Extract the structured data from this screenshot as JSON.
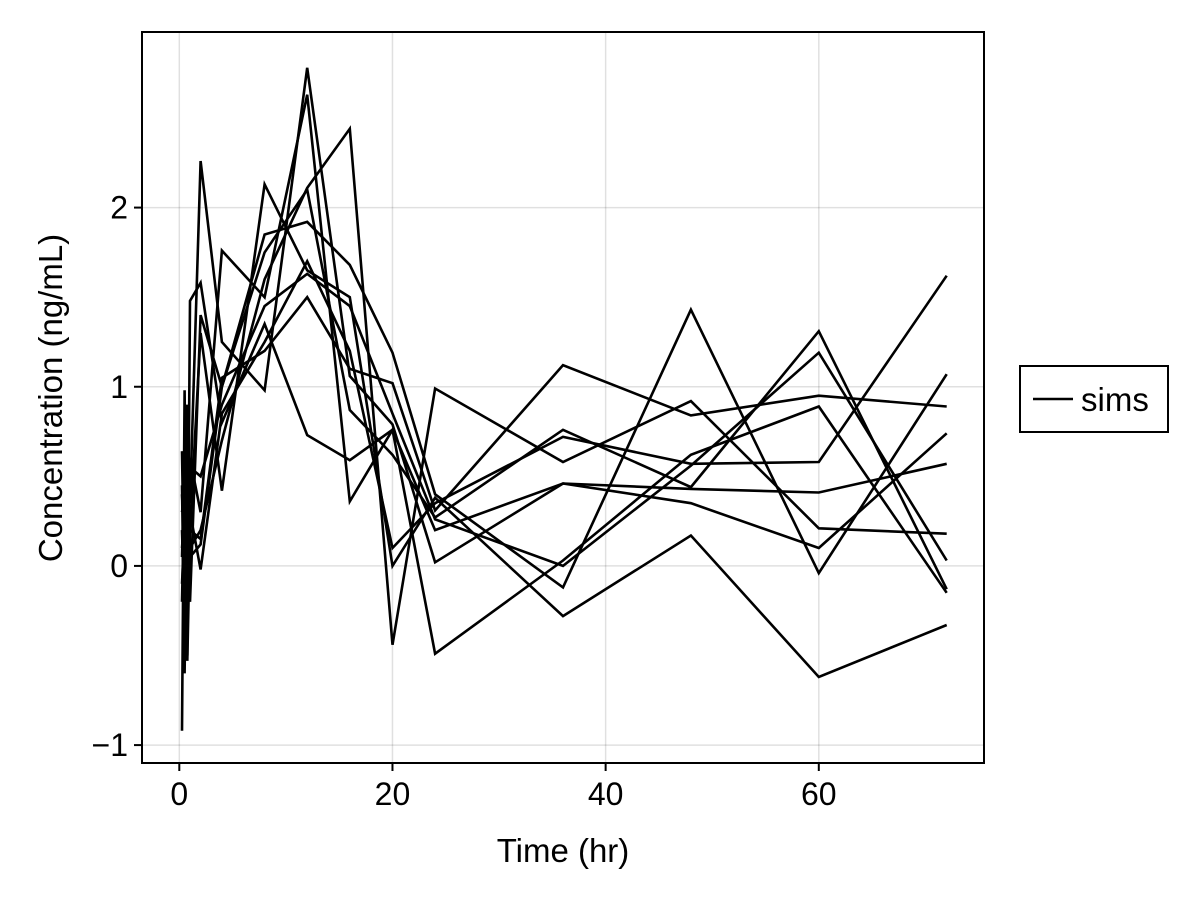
{
  "chart_data": {
    "type": "line",
    "title": "",
    "xlabel": "Time (hr)",
    "ylabel": "Concentration (ng/mL)",
    "xlim": [
      -3.5,
      75.5
    ],
    "ylim": [
      -1.1,
      2.98
    ],
    "xticks": [
      0,
      20,
      40,
      60
    ],
    "xtick_labels": [
      "0",
      "20",
      "40",
      "60"
    ],
    "yticks": [
      -1,
      0,
      1,
      2
    ],
    "ytick_labels": [
      "−1",
      "0",
      "1",
      "2"
    ],
    "grid": true,
    "legend": {
      "position": "right",
      "entries": [
        "sims"
      ]
    },
    "line_color": "#000000",
    "x": [
      0.25,
      0.5,
      0.75,
      1,
      2,
      4,
      8,
      12,
      16,
      20,
      24,
      36,
      48,
      60,
      72
    ],
    "series": [
      {
        "name": "sims",
        "values": [
          0.64,
          -0.28,
          0.9,
          0.35,
          2.26,
          1.25,
          0.98,
          2.78,
          1.06,
          0.79,
          0.02,
          0.46,
          0.35,
          0.1,
          0.74
        ]
      },
      {
        "name": "sims",
        "values": [
          0.45,
          -0.6,
          0.55,
          -0.2,
          1.4,
          1.0,
          1.75,
          2.1,
          0.87,
          0.62,
          0.27,
          0.76,
          0.44,
          1.31,
          -0.13
        ]
      },
      {
        "name": "sims",
        "values": [
          -0.92,
          0.98,
          -0.53,
          0.2,
          1.3,
          0.42,
          2.13,
          1.65,
          1.5,
          0.0,
          0.38,
          -0.28,
          0.17,
          -0.62,
          -0.33
        ]
      },
      {
        "name": "sims",
        "values": [
          0.3,
          0.4,
          0.2,
          0.6,
          0.3,
          1.76,
          1.5,
          2.63,
          0.36,
          0.76,
          -0.49,
          0.03,
          0.62,
          0.89,
          -0.15
        ]
      },
      {
        "name": "sims",
        "values": [
          -0.1,
          0.2,
          0.35,
          0.1,
          0.2,
          0.7,
          1.6,
          2.11,
          2.44,
          -0.44,
          0.99,
          0.58,
          0.92,
          0.21,
          0.18
        ]
      },
      {
        "name": "sims",
        "values": [
          0.2,
          -0.3,
          -0.5,
          1.48,
          1.58,
          0.8,
          1.35,
          0.73,
          0.59,
          0.76,
          0.2,
          0.46,
          0.43,
          0.41,
          0.57
        ]
      },
      {
        "name": "sims",
        "values": [
          0.4,
          0.1,
          0.6,
          0.2,
          0.15,
          1.05,
          1.2,
          1.5,
          1.1,
          1.02,
          0.31,
          1.12,
          0.84,
          0.95,
          0.89
        ]
      },
      {
        "name": "sims",
        "values": [
          -0.2,
          0.5,
          -0.1,
          0.3,
          -0.02,
          0.85,
          1.25,
          1.7,
          1.2,
          0.1,
          0.35,
          0.72,
          0.57,
          0.58,
          1.62
        ]
      },
      {
        "name": "sims",
        "values": [
          0.1,
          0.3,
          0.45,
          0.55,
          0.5,
          0.9,
          1.45,
          1.63,
          1.45,
          0.85,
          0.26,
          0.0,
          0.56,
          1.19,
          0.03
        ]
      },
      {
        "name": "sims",
        "values": [
          0.05,
          0.6,
          0.25,
          0.05,
          0.12,
          1.0,
          1.85,
          1.92,
          1.68,
          1.19,
          0.4,
          -0.12,
          1.43,
          -0.04,
          1.07
        ]
      }
    ]
  }
}
